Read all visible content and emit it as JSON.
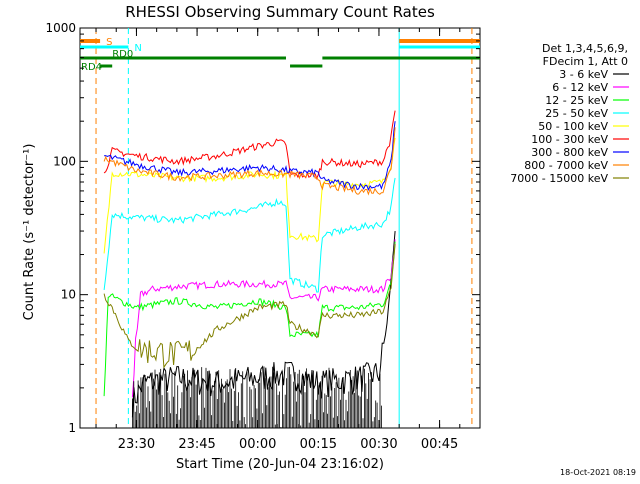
{
  "chart_data": {
    "type": "line",
    "title": "RHESSI Observing Summary Count Rates",
    "xlabel": "Start Time (20-Jun-04 23:16:02)",
    "ylabel": "Count Rate (s⁻¹ detector⁻¹)",
    "ylog": true,
    "ylim": [
      1,
      1000
    ],
    "xlim": [
      "23:16:02",
      "00:55:00"
    ],
    "yticks": [
      "1",
      "10",
      "100",
      "1000"
    ],
    "xticks": [
      {
        "t": "23:30",
        "label": "23:30"
      },
      {
        "t": "23:45",
        "label": "23:45"
      },
      {
        "t": "00:00",
        "label": "00:00"
      },
      {
        "t": "00:15",
        "label": "00:15"
      },
      {
        "t": "00:30",
        "label": "00:30"
      },
      {
        "t": "00:45",
        "label": "00:45"
      }
    ],
    "legend_header": [
      "Det 1,3,4,5,6,9,",
      "FDecim 1, Att 0"
    ],
    "legend_position": "right",
    "series": [
      {
        "name": "3 - 6 keV",
        "color": "#000000",
        "points": [
          [
            "23:29",
            1.6
          ],
          [
            "23:32",
            2.2
          ],
          [
            "23:40",
            2.4
          ],
          [
            "23:50",
            2.2
          ],
          [
            "00:00",
            2.4
          ],
          [
            "00:08",
            2.6
          ],
          [
            "00:15",
            2.2
          ],
          [
            "00:25",
            2.4
          ],
          [
            "00:30",
            2.6
          ],
          [
            "00:32",
            6
          ],
          [
            "00:34",
            30
          ]
        ]
      },
      {
        "name": "6 - 12 keV",
        "color": "#ff00ff",
        "points": [
          [
            "23:29",
            2
          ],
          [
            "23:31",
            10
          ],
          [
            "23:34",
            11
          ],
          [
            "23:40",
            11.5
          ],
          [
            "23:50",
            12
          ],
          [
            "00:00",
            12
          ],
          [
            "00:07",
            12
          ],
          [
            "00:08",
            9.5
          ],
          [
            "00:15",
            9.5
          ],
          [
            "00:16",
            11
          ],
          [
            "00:25",
            11
          ],
          [
            "00:31",
            11
          ],
          [
            "00:33",
            14
          ],
          [
            "00:34",
            26
          ]
        ]
      },
      {
        "name": "12 - 25 keV",
        "color": "#00ff00",
        "points": [
          [
            "23:22",
            1.5
          ],
          [
            "23:23",
            10
          ],
          [
            "23:26",
            9
          ],
          [
            "23:30",
            8
          ],
          [
            "23:40",
            9
          ],
          [
            "23:50",
            8
          ],
          [
            "00:00",
            9
          ],
          [
            "00:07",
            8
          ],
          [
            "00:08",
            5
          ],
          [
            "00:15",
            5
          ],
          [
            "00:16",
            8
          ],
          [
            "00:25",
            8
          ],
          [
            "00:31",
            8.5
          ],
          [
            "00:33",
            12
          ],
          [
            "00:34",
            25
          ]
        ]
      },
      {
        "name": "25 - 50 keV",
        "color": "#00ffff",
        "points": [
          [
            "23:22",
            11
          ],
          [
            "23:24",
            40
          ],
          [
            "23:30",
            38
          ],
          [
            "23:40",
            36
          ],
          [
            "23:50",
            40
          ],
          [
            "00:00",
            45
          ],
          [
            "00:05",
            50
          ],
          [
            "00:07",
            48
          ],
          [
            "00:08",
            13
          ],
          [
            "00:15",
            11
          ],
          [
            "00:16",
            28
          ],
          [
            "00:25",
            32
          ],
          [
            "00:31",
            34
          ],
          [
            "00:33",
            45
          ],
          [
            "00:34",
            75
          ]
        ]
      },
      {
        "name": "50 - 100 keV",
        "color": "#ffff00",
        "points": [
          [
            "23:22",
            20
          ],
          [
            "23:24",
            82
          ],
          [
            "23:30",
            80
          ],
          [
            "23:40",
            75
          ],
          [
            "23:50",
            75
          ],
          [
            "00:00",
            80
          ],
          [
            "00:07",
            78
          ],
          [
            "00:08",
            28
          ],
          [
            "00:15",
            26
          ],
          [
            "00:16",
            70
          ],
          [
            "00:25",
            67
          ],
          [
            "00:31",
            70
          ],
          [
            "00:33",
            95
          ],
          [
            "00:34",
            150
          ]
        ]
      },
      {
        "name": "100 - 300 keV",
        "color": "#ff0000",
        "points": [
          [
            "23:22",
            80
          ],
          [
            "23:24",
            120
          ],
          [
            "23:30",
            110
          ],
          [
            "23:40",
            100
          ],
          [
            "23:50",
            110
          ],
          [
            "00:00",
            130
          ],
          [
            "00:05",
            140
          ],
          [
            "00:07",
            135
          ],
          [
            "00:08",
            80
          ],
          [
            "00:15",
            78
          ],
          [
            "00:16",
            100
          ],
          [
            "00:25",
            95
          ],
          [
            "00:31",
            100
          ],
          [
            "00:33",
            150
          ],
          [
            "00:34",
            240
          ]
        ]
      },
      {
        "name": "300 - 800 keV",
        "color": "#0000ff",
        "points": [
          [
            "23:22",
            110
          ],
          [
            "23:30",
            95
          ],
          [
            "23:40",
            82
          ],
          [
            "23:50",
            85
          ],
          [
            "00:00",
            90
          ],
          [
            "00:07",
            86
          ],
          [
            "00:08",
            84
          ],
          [
            "00:15",
            82
          ],
          [
            "00:16",
            72
          ],
          [
            "00:25",
            65
          ],
          [
            "00:31",
            65
          ],
          [
            "00:33",
            100
          ],
          [
            "00:34",
            200
          ]
        ]
      },
      {
        "name": "800 - 7000 keV",
        "color": "#ff8000",
        "points": [
          [
            "23:22",
            105
          ],
          [
            "23:30",
            85
          ],
          [
            "23:40",
            76
          ],
          [
            "23:50",
            78
          ],
          [
            "00:00",
            82
          ],
          [
            "00:07",
            80
          ],
          [
            "00:08",
            80
          ],
          [
            "00:15",
            76
          ],
          [
            "00:16",
            66
          ],
          [
            "00:25",
            60
          ],
          [
            "00:31",
            60
          ],
          [
            "00:33",
            90
          ],
          [
            "00:34",
            180
          ]
        ]
      },
      {
        "name": "7000 - 15000 keV",
        "color": "#808000",
        "points": [
          [
            "23:22",
            10
          ],
          [
            "23:24",
            8
          ],
          [
            "23:26",
            6
          ],
          [
            "23:28",
            4.5
          ],
          [
            "23:30",
            4
          ],
          [
            "23:40",
            3.6
          ],
          [
            "23:45",
            4
          ],
          [
            "23:50",
            5.5
          ],
          [
            "00:00",
            8
          ],
          [
            "00:07",
            8.5
          ],
          [
            "00:08",
            6
          ],
          [
            "00:15",
            5
          ],
          [
            "00:16",
            7
          ],
          [
            "00:25",
            7
          ],
          [
            "00:31",
            7.5
          ],
          [
            "00:33",
            11
          ],
          [
            "00:34",
            24
          ]
        ]
      }
    ],
    "flags": [
      {
        "label": "S",
        "color": "#ff8000",
        "segments": [
          [
            "23:16",
            "23:21"
          ],
          [
            "00:35",
            "00:55"
          ]
        ]
      },
      {
        "label": "N",
        "color": "#00ffff",
        "segments": [
          [
            "23:16",
            "23:28"
          ],
          [
            "00:35",
            "00:55"
          ]
        ]
      },
      {
        "label": "RD0",
        "color": "#008000",
        "segments": [
          [
            "23:16",
            "00:07"
          ],
          [
            "00:16",
            "00:55"
          ]
        ]
      },
      {
        "label": "RD4",
        "color": "#008000",
        "segments": [
          [
            "23:21",
            "23:24"
          ],
          [
            "00:08",
            "00:16"
          ]
        ]
      }
    ],
    "vlines": [
      {
        "t": "23:20",
        "color": "#ff8000",
        "dash": true
      },
      {
        "t": "23:28",
        "color": "#00ffff",
        "dash": true
      },
      {
        "t": "00:35",
        "color": "#00ffff",
        "dash": false
      },
      {
        "t": "00:53",
        "color": "#ff8000",
        "dash": true
      }
    ],
    "footer_timestamp": "18-Oct-2021 08:19"
  },
  "colors": {
    "background": "#ffffff",
    "axis": "#000000"
  }
}
